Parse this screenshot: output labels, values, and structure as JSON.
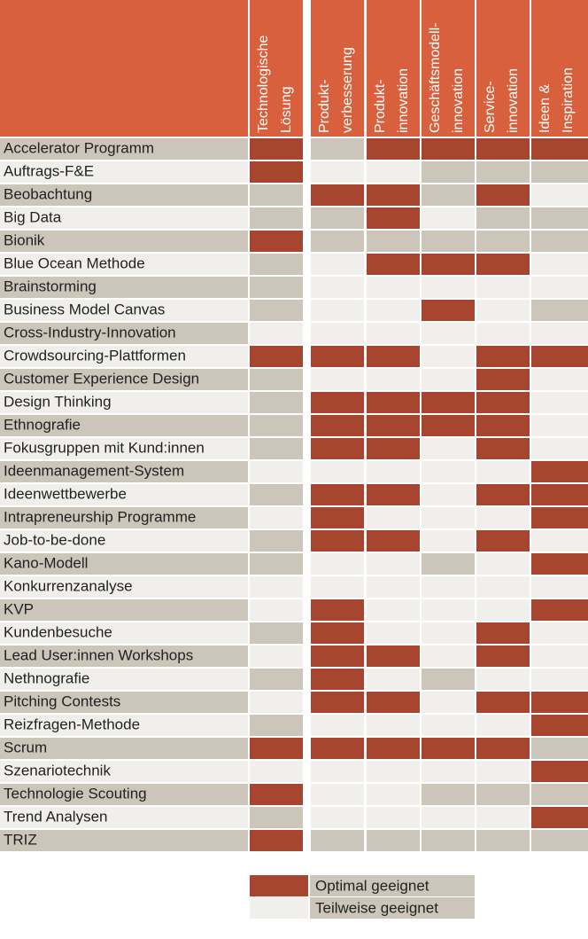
{
  "table": {
    "colors": {
      "header": "#d9603d",
      "R": "#a84530",
      "G": "#cbc5ba",
      "L": "#f1efeb"
    },
    "columns": [
      [
        "Technologische",
        "Lösung"
      ],
      [
        "Produkt-",
        "verbesserung"
      ],
      [
        "Produkt-",
        "innovation"
      ],
      [
        "Geschäftsmodell-",
        "innovation"
      ],
      [
        "Service-",
        "innovation"
      ],
      [
        "Ideen &",
        "Inspiration"
      ]
    ],
    "rows": [
      {
        "label": "Accelerator Programm",
        "cells": "RGRRRR"
      },
      {
        "label": "Auftrags-F&E",
        "cells": "RLLGGG"
      },
      {
        "label": "Beobachtung",
        "cells": "GRRGRL"
      },
      {
        "label": "Big Data",
        "cells": "GGRLGG"
      },
      {
        "label": "Bionik",
        "cells": "RGGGGG"
      },
      {
        "label": "Blue Ocean Methode",
        "cells": "GLRRRL"
      },
      {
        "label": "Brainstorming",
        "cells": "GLLLLL"
      },
      {
        "label": "Business Model Canvas",
        "cells": "GLLRLG"
      },
      {
        "label": "Cross-Industry-Innovation",
        "cells": "LLLLLL"
      },
      {
        "label": "Crowdsourcing-Plattformen",
        "cells": "RRRLRR"
      },
      {
        "label": "Customer Experience Design",
        "cells": "GLLLRL"
      },
      {
        "label": "Design Thinking",
        "cells": "GRRRRL"
      },
      {
        "label": "Ethnografie",
        "cells": "GRRRRL"
      },
      {
        "label": "Fokusgruppen mit Kund:innen",
        "cells": "GRRLRL"
      },
      {
        "label": "Ideenmanagement-System",
        "cells": "LLLLLR"
      },
      {
        "label": "Ideenwettbewerbe",
        "cells": "GRRLRR"
      },
      {
        "label": "Intrapreneurship Programme",
        "cells": "LRLLLR"
      },
      {
        "label": "Job-to-be-done",
        "cells": "GRRLRL"
      },
      {
        "label": "Kano-Modell",
        "cells": "GLLGLR"
      },
      {
        "label": "Konkurrenzanalyse",
        "cells": "LLLLLL"
      },
      {
        "label": "KVP",
        "cells": "LRLLLR"
      },
      {
        "label": "Kundenbesuche",
        "cells": "GRLLRL"
      },
      {
        "label": "Lead User:innen Workshops",
        "cells": "LRRLRL"
      },
      {
        "label": "Nethnografie",
        "cells": "GRLGLL"
      },
      {
        "label": "Pitching Contests",
        "cells": "LRRLRR"
      },
      {
        "label": "Reizfragen-Methode",
        "cells": "GLLLLR"
      },
      {
        "label": "Scrum",
        "cells": "RRRRRG"
      },
      {
        "label": "Szenariotechnik",
        "cells": "LLLLLR"
      },
      {
        "label": "Technologie Scouting",
        "cells": "RLLGGG"
      },
      {
        "label": "Trend Analysen",
        "cells": "GLLLLR"
      },
      {
        "label": "TRIZ",
        "cells": "RGGGGG"
      }
    ],
    "legend": [
      {
        "label": "Optimal geeignet",
        "key": "R"
      },
      {
        "label": "Teilweise geeignet",
        "key": "L"
      }
    ]
  }
}
